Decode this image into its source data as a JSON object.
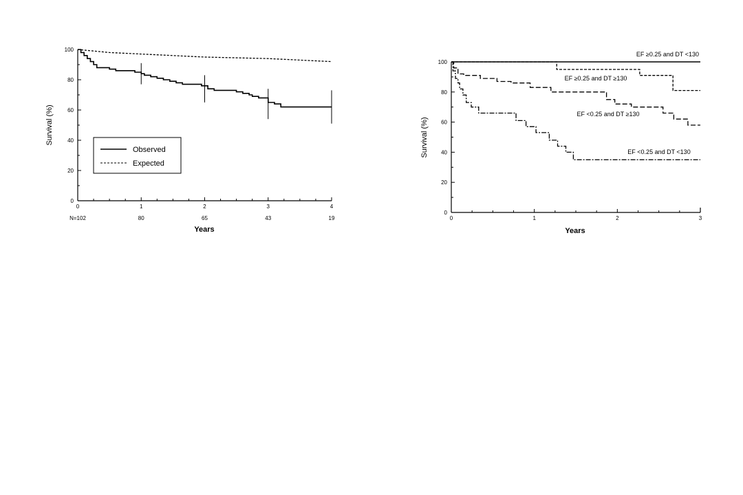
{
  "chart_data": [
    {
      "type": "line",
      "xlabel": "Years",
      "ylabel": "Survival (%)",
      "xlim": [
        0,
        4
      ],
      "ylim": [
        0,
        100
      ],
      "x_ticks": [
        "0",
        "1",
        "2",
        "3",
        "4"
      ],
      "y_ticks": [
        "0",
        "20",
        "40",
        "60",
        "80",
        "100"
      ],
      "at_risk_label": "N=102",
      "at_risk": [
        "80",
        "65",
        "43",
        "19"
      ],
      "grid": false,
      "legend_position": "bottom-left",
      "series": [
        {
          "name": "Observed",
          "style": "solid",
          "step": true,
          "x": [
            0,
            0.05,
            0.1,
            0.15,
            0.2,
            0.25,
            0.3,
            0.5,
            0.6,
            0.9,
            1.0,
            1.05,
            1.15,
            1.25,
            1.35,
            1.45,
            1.55,
            1.65,
            1.95,
            2.05,
            2.15,
            2.5,
            2.6,
            2.7,
            2.75,
            2.85,
            3.0,
            3.1,
            3.2,
            4.0
          ],
          "y": [
            100,
            98,
            96,
            94,
            92,
            90,
            88,
            87,
            86,
            85,
            84,
            83,
            82,
            81,
            80,
            79,
            78,
            77,
            76,
            74,
            73,
            72,
            71,
            70,
            69,
            68,
            65,
            64,
            62,
            62
          ],
          "error_bars": [
            {
              "x": 1,
              "y": 84,
              "lower": 77,
              "upper": 91
            },
            {
              "x": 2,
              "y": 74,
              "lower": 65,
              "upper": 83
            },
            {
              "x": 3,
              "y": 64,
              "lower": 54,
              "upper": 74
            },
            {
              "x": 4,
              "y": 62,
              "lower": 51,
              "upper": 73
            }
          ]
        },
        {
          "name": "Expected",
          "style": "dashed",
          "step": false,
          "x": [
            0,
            0.5,
            1,
            2,
            3,
            4
          ],
          "y": [
            100,
            98,
            97,
            95,
            94,
            92
          ]
        }
      ]
    },
    {
      "type": "line",
      "xlabel": "Years",
      "ylabel": "Survival (%)",
      "xlim": [
        0,
        3
      ],
      "ylim": [
        0,
        100
      ],
      "x_ticks": [
        "0",
        "1",
        "2",
        "3"
      ],
      "y_ticks": [
        "0",
        "20",
        "40",
        "60",
        "80",
        "100"
      ],
      "grid": false,
      "series": [
        {
          "name": "EF ≥0.25 and DT <130",
          "style": "solid",
          "step": true,
          "x": [
            0,
            3
          ],
          "y": [
            100,
            100
          ]
        },
        {
          "name": "EF ≥0.25 and DT ≥130",
          "style": "dashed-short",
          "step": true,
          "x": [
            0,
            1.27,
            2.27,
            2.67,
            3.0
          ],
          "y": [
            100,
            95,
            91,
            81,
            81
          ]
        },
        {
          "name": "EF <0.25 and DT ≥130",
          "style": "dashed-long",
          "step": true,
          "x": [
            0,
            0.03,
            0.08,
            0.15,
            0.35,
            0.55,
            0.72,
            0.95,
            1.2,
            1.87,
            1.97,
            2.17,
            2.55,
            2.68,
            2.85,
            3.0
          ],
          "y": [
            100,
            96,
            92,
            91,
            89,
            87,
            86,
            83,
            80,
            75,
            72,
            70,
            66,
            62,
            58,
            58
          ]
        },
        {
          "name": "EF <0.25 and DT <130",
          "style": "dash-dot",
          "step": true,
          "x": [
            0,
            0.02,
            0.05,
            0.08,
            0.1,
            0.14,
            0.18,
            0.24,
            0.33,
            0.78,
            0.9,
            1.02,
            1.18,
            1.28,
            1.38,
            1.47,
            3.0
          ],
          "y": [
            100,
            94,
            89,
            86,
            82,
            78,
            73,
            70,
            66,
            61,
            57,
            53,
            48,
            44,
            40,
            35,
            35
          ]
        }
      ]
    }
  ]
}
